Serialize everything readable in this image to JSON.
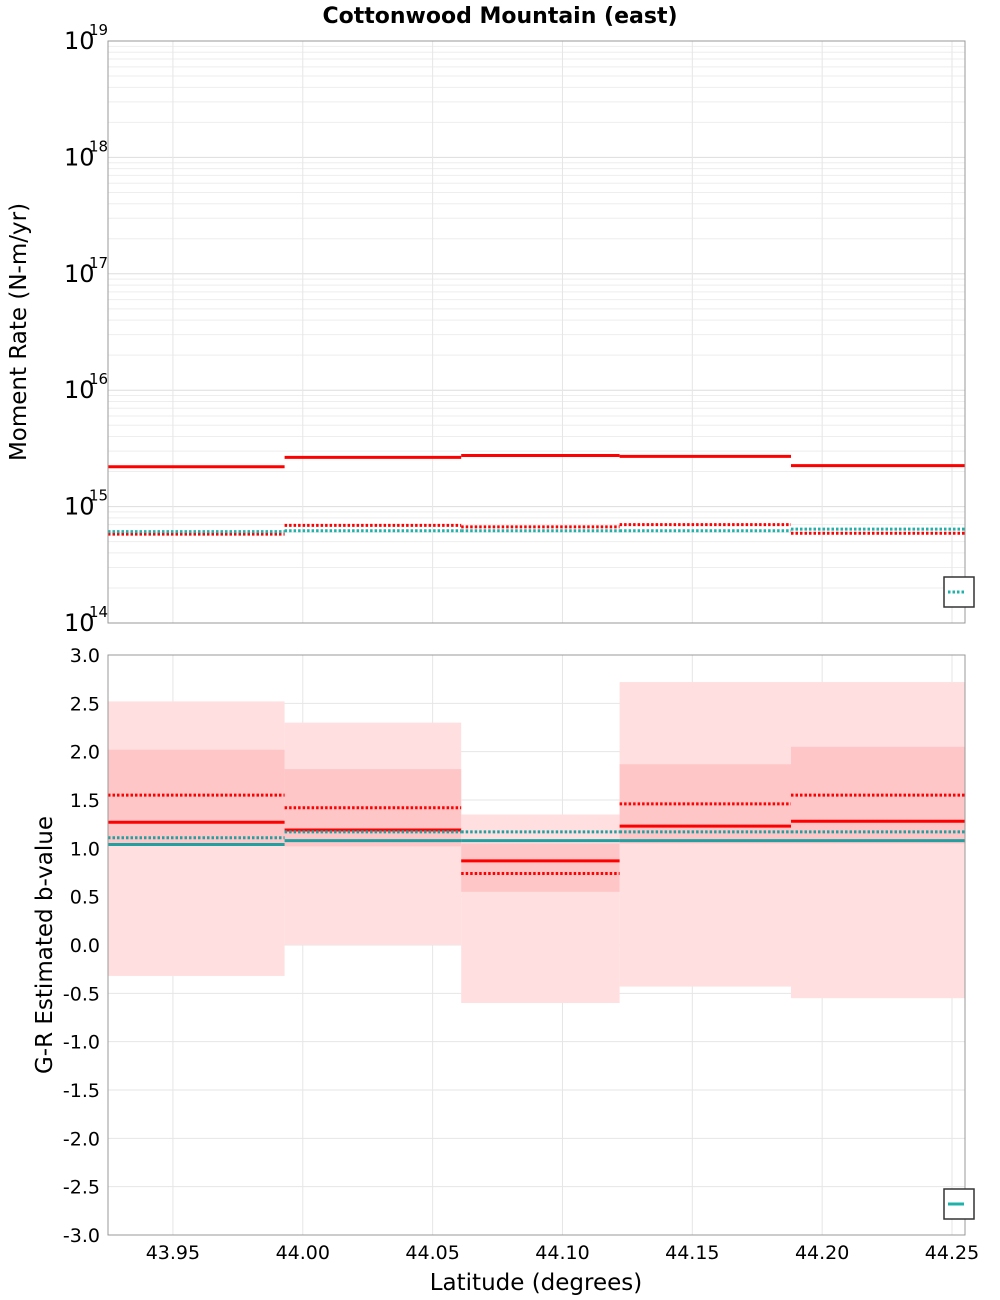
{
  "chart_data": [
    {
      "type": "line",
      "panel": "top",
      "title": "Cottonwood Mountain (east)",
      "ylabel": "Moment Rate (N-m/yr)",
      "yscale": "log",
      "ylim": [
        100000000000000.0,
        1e+19
      ],
      "ytick_labels": [
        {
          "base": "10",
          "exp": "14"
        },
        {
          "base": "10",
          "exp": "15"
        },
        {
          "base": "10",
          "exp": "16"
        },
        {
          "base": "10",
          "exp": "17"
        },
        {
          "base": "10",
          "exp": "18"
        },
        {
          "base": "10",
          "exp": "19"
        }
      ],
      "xlim": [
        43.925,
        44.255
      ],
      "grid": true,
      "legend_placement": "bottom-right",
      "bin_edges": [
        43.925,
        43.993,
        44.061,
        44.122,
        44.188,
        44.255
      ],
      "series": [
        {
          "style": "solid",
          "color": "#ff0000",
          "values": [
            2200000000000000.0,
            2650000000000000.0,
            2750000000000000.0,
            2700000000000000.0,
            2250000000000000.0
          ]
        },
        {
          "style": "dotted",
          "color": "#ff0000",
          "values": [
            580000000000000.0,
            690000000000000.0,
            670000000000000.0,
            700000000000000.0,
            590000000000000.0
          ]
        },
        {
          "style": "dotted",
          "color": "#20b2aa",
          "values": [
            610000000000000.0,
            620000000000000.0,
            620000000000000.0,
            620000000000000.0,
            640000000000000.0
          ]
        }
      ]
    },
    {
      "type": "line",
      "panel": "bottom",
      "xlabel": "Latitude (degrees)",
      "ylabel": "G-R Estimated b-value",
      "ylim": [
        -3.0,
        3.0
      ],
      "xlim": [
        43.925,
        44.255
      ],
      "grid": true,
      "legend_placement": "bottom-right",
      "yticks": [
        "-3.0",
        "-2.5",
        "-2.0",
        "-1.5",
        "-1.0",
        "-0.5",
        "0.0",
        "0.5",
        "1.0",
        "1.5",
        "2.0",
        "2.5",
        "3.0"
      ],
      "xticks": [
        "43.95",
        "44.00",
        "44.05",
        "44.10",
        "44.15",
        "44.20",
        "44.25"
      ],
      "bin_edges": [
        43.925,
        43.993,
        44.061,
        44.122,
        44.188,
        44.255
      ],
      "outer_band": {
        "color": "#ffdfe0",
        "lower": [
          -0.32,
          0.0,
          -0.6,
          -0.43,
          -0.55
        ],
        "upper": [
          2.52,
          2.3,
          1.35,
          2.72,
          2.72
        ]
      },
      "inner_band": {
        "color": "#ffc6c8",
        "lower": [
          1.05,
          1.02,
          0.55,
          1.05,
          1.05
        ],
        "upper": [
          2.02,
          1.82,
          1.05,
          1.87,
          2.05
        ]
      },
      "series": [
        {
          "style": "solid",
          "color": "#ff0000",
          "values": [
            1.27,
            1.19,
            0.87,
            1.23,
            1.28
          ]
        },
        {
          "style": "dotted",
          "color": "#ff0000",
          "values": [
            1.55,
            1.42,
            0.74,
            1.46,
            1.55
          ]
        },
        {
          "style": "solid",
          "color": "#20a0a0",
          "values": [
            1.04,
            1.08,
            1.08,
            1.08,
            1.08
          ]
        },
        {
          "style": "dotted",
          "color": "#20a0a0",
          "values": [
            1.11,
            1.17,
            1.17,
            1.17,
            1.17
          ]
        }
      ]
    }
  ]
}
